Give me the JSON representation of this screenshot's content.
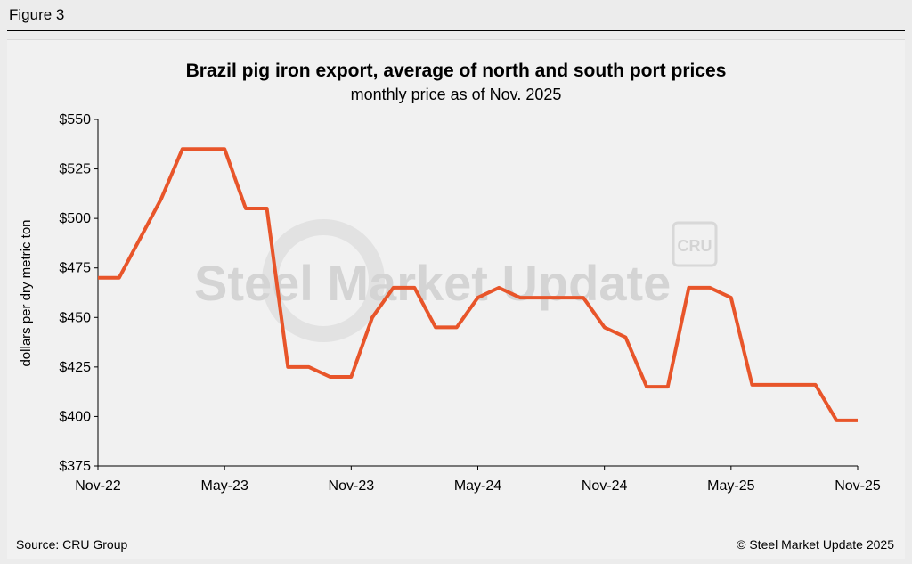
{
  "figure_label": "Figure 3",
  "watermark": {
    "text": "Steel Market Update",
    "badge": "CRU"
  },
  "footer": {
    "source": "Source: CRU Group",
    "copyright": "© Steel Market Update 2025"
  },
  "colors": {
    "line": "#e8552a",
    "axis": "#000000",
    "watermark": "#c8c8c8"
  },
  "chart_data": {
    "type": "line",
    "title": "Brazil pig iron export, average of north and south port prices",
    "subtitle": "monthly price as of Nov. 2025",
    "xlabel": "",
    "ylabel": "dollars per dry metric ton",
    "ylim": [
      375,
      550
    ],
    "yticks": [
      375,
      400,
      425,
      450,
      475,
      500,
      525,
      550
    ],
    "ytick_labels": [
      "$375",
      "$400",
      "$425",
      "$450",
      "$475",
      "$500",
      "$525",
      "$550"
    ],
    "x": [
      "Nov-22",
      "Dec-22",
      "Jan-23",
      "Feb-23",
      "Mar-23",
      "Apr-23",
      "May-23",
      "Jun-23",
      "Jul-23",
      "Aug-23",
      "Sep-23",
      "Oct-23",
      "Nov-23",
      "Dec-23",
      "Jan-24",
      "Feb-24",
      "Mar-24",
      "Apr-24",
      "May-24",
      "Jun-24",
      "Jul-24",
      "Aug-24",
      "Sep-24",
      "Oct-24",
      "Nov-24",
      "Dec-24",
      "Jan-25",
      "Feb-25",
      "Mar-25",
      "Apr-25",
      "May-25",
      "Jun-25",
      "Jul-25",
      "Aug-25",
      "Sep-25",
      "Oct-25",
      "Nov-25"
    ],
    "xtick_labels": [
      "Nov-22",
      "May-23",
      "Nov-23",
      "May-24",
      "Nov-24",
      "May-25",
      "Nov-25"
    ],
    "xtick_every": 6,
    "grid": false,
    "legend": "none",
    "series": [
      {
        "values": [
          470,
          470,
          490,
          510,
          535,
          535,
          535,
          505,
          505,
          425,
          425,
          420,
          420,
          450,
          465,
          465,
          445,
          445,
          460,
          465,
          460,
          460,
          460,
          460,
          445,
          440,
          415,
          415,
          465,
          465,
          460,
          416,
          416,
          416,
          416,
          398,
          398
        ]
      }
    ]
  }
}
